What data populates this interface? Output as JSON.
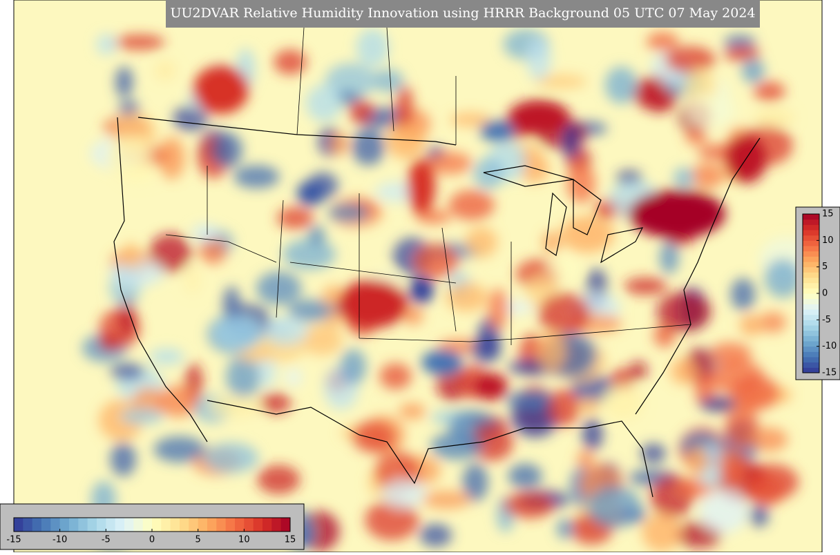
{
  "title": "UU2DVAR Relative Humidity Innovation using HRRR Background 05 UTC 07 May 2024",
  "colorbar": {
    "lim": [
      -15,
      15
    ],
    "colors": [
      "#313695",
      "#4575b4",
      "#74add1",
      "#abd9e9",
      "#e0f3f8",
      "#ffffbf",
      "#fee090",
      "#fdae61",
      "#f46d43",
      "#d73027",
      "#a50026"
    ],
    "horizontal_ticks": [
      -15,
      -10,
      -5,
      0,
      5,
      10,
      15
    ],
    "vertical_ticks": [
      15,
      10,
      5,
      0,
      -5,
      -10,
      -15
    ]
  }
}
